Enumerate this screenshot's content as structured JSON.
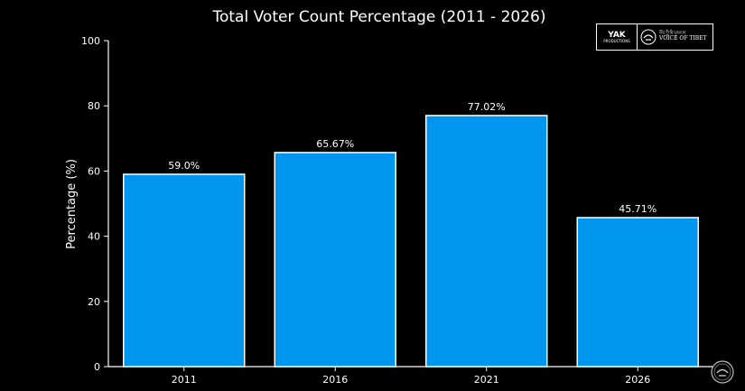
{
  "chart_data": {
    "type": "bar",
    "title": "Total Voter Count Percentage (2011 - 2026)",
    "xlabel": "",
    "ylabel": "Percentage (%)",
    "categories": [
      "2011",
      "2016",
      "2021",
      "2026"
    ],
    "values": [
      59.0,
      65.67,
      77.02,
      45.71
    ],
    "value_labels": [
      "59.0%",
      "65.67%",
      "77.02%",
      "45.71%"
    ],
    "ylim": [
      0,
      100
    ],
    "yticks": [
      0,
      20,
      40,
      60,
      80,
      100
    ],
    "bar_color": "#0096f0",
    "bar_edge_color": "#ffffff",
    "grid": false,
    "legend": "none"
  },
  "branding": {
    "yak_logo_text": "YAK",
    "yak_logo_subtext": "PRODUCTIONS",
    "vot_script_text": "བོད་ཀྱི་མི་དམངས་",
    "vot_name": "VOICE OF TIBET",
    "emblem_icon": "voice-of-tibet-emblem"
  }
}
